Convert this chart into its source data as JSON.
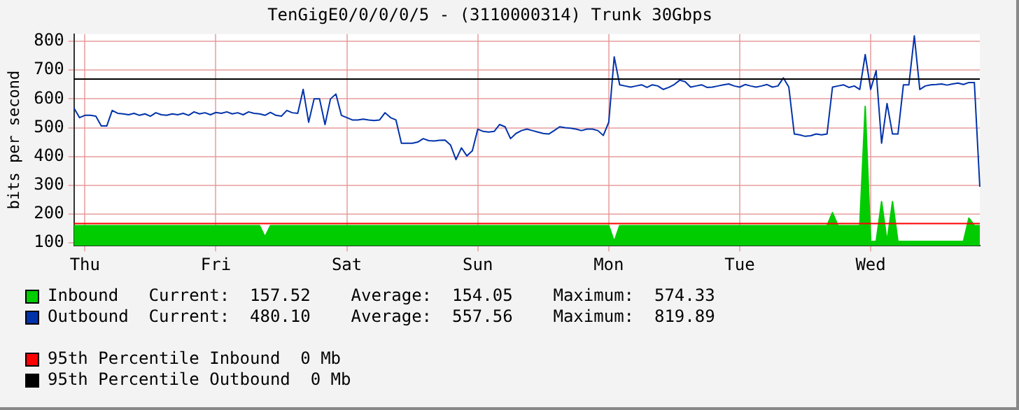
{
  "chart_data": {
    "type": "line",
    "title": "TenGigE0/0/0/0/5 - (3110000314) Trunk 30Gbps",
    "ylabel": "bits per second",
    "categories": [
      null,
      null,
      "Thu",
      null,
      null,
      null,
      null,
      null,
      null,
      null,
      null,
      null,
      null,
      null,
      null,
      null,
      null,
      null,
      null,
      null,
      null,
      null,
      null,
      null,
      null,
      null,
      "Fri",
      null,
      null,
      null,
      null,
      null,
      null,
      null,
      null,
      null,
      null,
      null,
      null,
      null,
      null,
      null,
      null,
      null,
      null,
      null,
      null,
      null,
      null,
      null,
      "Sat",
      null,
      null,
      null,
      null,
      null,
      null,
      null,
      null,
      null,
      null,
      null,
      null,
      null,
      null,
      null,
      null,
      null,
      null,
      null,
      null,
      null,
      null,
      null,
      "Sun",
      null,
      null,
      null,
      null,
      null,
      null,
      null,
      null,
      null,
      null,
      null,
      null,
      null,
      null,
      null,
      null,
      null,
      null,
      null,
      null,
      null,
      null,
      null,
      "Mon",
      null,
      null,
      null,
      null,
      null,
      null,
      null,
      null,
      null,
      null,
      null,
      null,
      null,
      null,
      null,
      null,
      null,
      null,
      null,
      null,
      null,
      null,
      null,
      "Tue",
      null,
      null,
      null,
      null,
      null,
      null,
      null,
      null,
      null,
      null,
      null,
      null,
      null,
      null,
      null,
      null,
      null,
      null,
      null,
      null,
      null,
      null,
      null,
      "Wed",
      null,
      null,
      null,
      null,
      null,
      null,
      null,
      null,
      null,
      null,
      null,
      null,
      null,
      null,
      null,
      null,
      null,
      null,
      null,
      null
    ],
    "ylim": [
      90,
      825
    ],
    "yticks": [
      100,
      200,
      300,
      400,
      500,
      600,
      700,
      800
    ],
    "grid": true,
    "legend": "bottom",
    "marker": "none",
    "series": [
      {
        "name": "Inbound",
        "type": "area",
        "color": "#00cc00",
        "values": [
          160,
          160,
          160,
          160,
          160,
          160,
          160,
          160,
          160,
          160,
          160,
          160,
          160,
          160,
          160,
          160,
          160,
          160,
          160,
          160,
          160,
          160,
          160,
          160,
          160,
          160,
          160,
          160,
          160,
          160,
          160,
          160,
          160,
          160,
          160,
          121,
          160,
          160,
          160,
          160,
          160,
          160,
          160,
          160,
          160,
          160,
          160,
          160,
          160,
          160,
          160,
          160,
          160,
          160,
          160,
          160,
          160,
          160,
          160,
          160,
          160,
          160,
          160,
          160,
          160,
          160,
          160,
          160,
          160,
          160,
          160,
          160,
          160,
          160,
          160,
          160,
          160,
          160,
          160,
          160,
          160,
          160,
          160,
          160,
          160,
          160,
          160,
          160,
          160,
          160,
          160,
          160,
          160,
          160,
          160,
          160,
          160,
          160,
          160,
          105,
          160,
          160,
          160,
          160,
          160,
          160,
          160,
          160,
          160,
          160,
          160,
          160,
          160,
          160,
          160,
          160,
          160,
          160,
          160,
          160,
          160,
          160,
          160,
          160,
          160,
          160,
          160,
          160,
          160,
          160,
          160,
          160,
          160,
          160,
          160,
          160,
          160,
          160,
          160,
          205,
          160,
          160,
          160,
          160,
          160,
          574,
          105,
          105,
          243,
          105,
          243,
          105,
          105,
          105,
          105,
          105,
          105,
          105,
          105,
          105,
          105,
          105,
          105,
          105,
          186,
          160,
          160
        ]
      },
      {
        "name": "Outbound",
        "type": "line",
        "color": "#0033aa",
        "values": [
          568,
          535,
          543,
          543,
          540,
          506,
          506,
          560,
          550,
          548,
          545,
          550,
          543,
          548,
          540,
          552,
          545,
          543,
          548,
          545,
          550,
          543,
          555,
          548,
          552,
          545,
          553,
          550,
          555,
          548,
          552,
          545,
          555,
          550,
          548,
          543,
          553,
          543,
          540,
          560,
          552,
          550,
          633,
          519,
          600,
          600,
          511,
          600,
          617,
          543,
          535,
          527,
          527,
          530,
          527,
          525,
          527,
          552,
          535,
          527,
          446,
          446,
          446,
          450,
          462,
          455,
          454,
          456,
          457,
          440,
          389,
          430,
          402,
          420,
          495,
          487,
          485,
          487,
          511,
          503,
          462,
          480,
          490,
          495,
          490,
          485,
          480,
          478,
          490,
          503,
          500,
          498,
          495,
          490,
          495,
          495,
          490,
          473,
          519,
          746,
          649,
          645,
          641,
          645,
          649,
          640,
          649,
          645,
          633,
          640,
          650,
          665,
          660,
          641,
          645,
          649,
          640,
          641,
          645,
          649,
          652,
          645,
          641,
          650,
          645,
          641,
          645,
          650,
          641,
          645,
          673,
          641,
          478,
          475,
          470,
          472,
          478,
          475,
          478,
          641,
          645,
          649,
          640,
          645,
          633,
          754,
          633,
          698,
          446,
          584,
          478,
          478,
          649,
          649,
          819,
          633,
          645,
          649,
          650,
          652,
          648,
          652,
          655,
          650,
          657,
          657,
          295
        ]
      }
    ],
    "ref_lines": [
      {
        "axis": "y",
        "value": 167,
        "label": "95th Percentile Inbound  0 Mb",
        "color": "#ff0000"
      },
      {
        "axis": "y",
        "value": 669,
        "label": "95th Percentile Outbound  0 Mb",
        "color": "#000000"
      }
    ],
    "annotations": [
      "Current:  157.52    Average:  154.05    Maximum:  574.33",
      "Current:  480.10    Average:  557.56    Maximum:  819.89"
    ]
  }
}
